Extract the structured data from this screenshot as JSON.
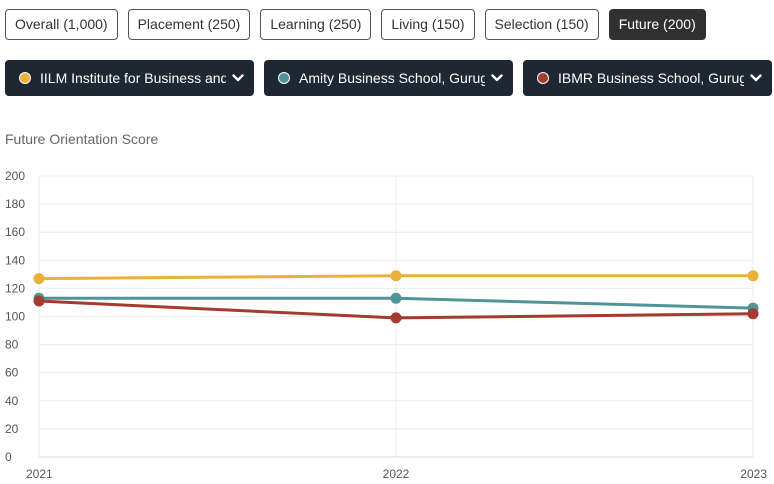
{
  "tabs": [
    {
      "label": "Overall (1,000)",
      "active": false
    },
    {
      "label": "Placement (250)",
      "active": false
    },
    {
      "label": "Learning (250)",
      "active": false
    },
    {
      "label": "Living (150)",
      "active": false
    },
    {
      "label": "Selection (150)",
      "active": false
    },
    {
      "label": "Future (200)",
      "active": true
    }
  ],
  "selectors": [
    {
      "label": "IILM Institute for Business and Management, Gurugram",
      "color": "#e9b13a",
      "icon": "chevron-down-icon"
    },
    {
      "label": "Amity Business School, Gurugram",
      "color": "#4e9598",
      "icon": "chevron-down-icon"
    },
    {
      "label": "IBMR Business School, Gurugram",
      "color": "#a33b2f",
      "icon": "chevron-down-icon"
    }
  ],
  "chart_data": {
    "type": "line",
    "title": "Future Orientation Score",
    "x": [
      "2021",
      "2022",
      "2023"
    ],
    "ylim": [
      0,
      200
    ],
    "yticks": [
      0,
      20,
      40,
      60,
      80,
      100,
      120,
      140,
      160,
      180,
      200
    ],
    "grid": true,
    "series": [
      {
        "color": "#e9b13a",
        "values": [
          127,
          129,
          129
        ]
      },
      {
        "color": "#4e9598",
        "values": [
          113,
          113,
          106
        ]
      },
      {
        "color": "#a33b2f",
        "values": [
          111,
          99,
          102
        ]
      }
    ]
  }
}
